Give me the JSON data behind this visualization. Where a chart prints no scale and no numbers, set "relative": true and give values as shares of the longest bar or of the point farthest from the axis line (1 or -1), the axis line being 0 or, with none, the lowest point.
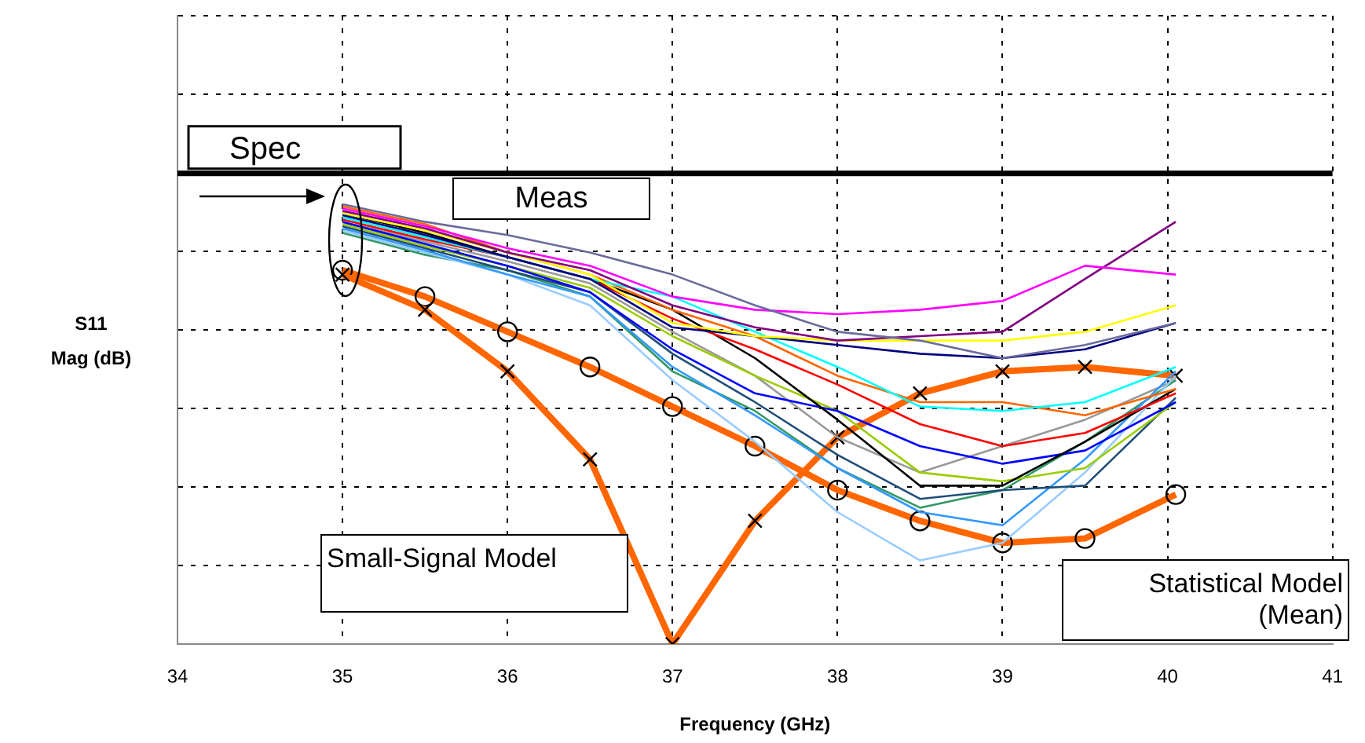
{
  "chart_data": {
    "type": "line",
    "relative": true,
    "xlabel": "Frequency (GHz)",
    "ylabel": "S11\nMag (dB)",
    "xlim": [
      34,
      41
    ],
    "xticks": [
      34,
      35,
      36,
      37,
      38,
      39,
      40,
      41
    ],
    "grid": true,
    "legend": false,
    "x": [
      35,
      35.5,
      36,
      36.5,
      37,
      37.5,
      38,
      38.5,
      39,
      39.5,
      40.05
    ],
    "ref_lines": [
      {
        "axis": "y",
        "value": 1.07,
        "label": "Spec",
        "color": "#000000"
      }
    ],
    "annotations": [
      "Meas"
    ],
    "series": [
      {
        "color": "#6b6b9b",
        "values": [
          1.0,
          0.96,
          0.93,
          0.89,
          0.84,
          0.77,
          0.71,
          0.69,
          0.65,
          0.68,
          0.73
        ]
      },
      {
        "color": "#ff00ff",
        "values": [
          0.99,
          0.95,
          0.9,
          0.86,
          0.79,
          0.76,
          0.75,
          0.76,
          0.78,
          0.86,
          0.84
        ]
      },
      {
        "color": "#800080",
        "values": [
          0.985,
          0.945,
          0.89,
          0.85,
          0.77,
          0.72,
          0.69,
          0.7,
          0.71,
          0.83,
          0.96
        ]
      },
      {
        "color": "#ffff00",
        "values": [
          0.98,
          0.94,
          0.89,
          0.84,
          0.73,
          0.7,
          0.69,
          0.69,
          0.69,
          0.71,
          0.77
        ]
      },
      {
        "color": "#000080",
        "values": [
          0.975,
          0.93,
          0.88,
          0.83,
          0.72,
          0.7,
          0.68,
          0.66,
          0.65,
          0.67,
          0.73
        ]
      },
      {
        "color": "#00ffff",
        "values": [
          0.97,
          0.925,
          0.88,
          0.83,
          0.79,
          0.71,
          0.63,
          0.54,
          0.53,
          0.55,
          0.63
        ]
      },
      {
        "color": "#ff6600",
        "values": [
          0.995,
          0.955,
          0.89,
          0.84,
          0.76,
          0.7,
          0.61,
          0.55,
          0.55,
          0.52,
          0.58
        ]
      },
      {
        "color": "#ff0000",
        "values": [
          0.965,
          0.92,
          0.88,
          0.83,
          0.74,
          0.67,
          0.59,
          0.5,
          0.45,
          0.48,
          0.57
        ]
      },
      {
        "color": "#000000",
        "values": [
          0.98,
          0.935,
          0.88,
          0.83,
          0.76,
          0.65,
          0.51,
          0.36,
          0.36,
          0.46,
          0.58
        ]
      },
      {
        "color": "#0000ff",
        "values": [
          0.96,
          0.91,
          0.86,
          0.8,
          0.67,
          0.57,
          0.53,
          0.45,
          0.41,
          0.44,
          0.55
        ]
      },
      {
        "color": "#99cc00",
        "values": [
          0.955,
          0.905,
          0.86,
          0.81,
          0.7,
          0.61,
          0.53,
          0.39,
          0.37,
          0.4,
          0.55
        ]
      },
      {
        "color": "#1f4e79",
        "values": [
          0.95,
          0.9,
          0.85,
          0.8,
          0.66,
          0.55,
          0.43,
          0.33,
          0.35,
          0.36,
          0.56
        ]
      },
      {
        "color": "#3399ff",
        "values": [
          0.945,
          0.895,
          0.84,
          0.79,
          0.63,
          0.52,
          0.4,
          0.3,
          0.27,
          0.42,
          0.62
        ]
      },
      {
        "color": "#99ccff",
        "values": [
          0.94,
          0.89,
          0.84,
          0.77,
          0.6,
          0.46,
          0.3,
          0.19,
          0.23,
          0.39,
          0.61
        ]
      },
      {
        "color": "#339966",
        "values": [
          0.935,
          0.885,
          0.85,
          0.79,
          0.62,
          0.53,
          0.4,
          0.31,
          0.35,
          0.46,
          0.6
        ]
      },
      {
        "color": "#999999",
        "values": [
          0.96,
          0.915,
          0.87,
          0.82,
          0.71,
          0.61,
          0.47,
          0.39,
          0.45,
          0.51,
          0.6
        ]
      },
      {
        "name": "Small-Signal Model",
        "color": "#ff6600",
        "marker": "cross",
        "values": [
          0.84,
          0.76,
          0.62,
          0.42,
          0.0,
          0.28,
          0.47,
          0.57,
          0.62,
          0.63,
          0.61
        ]
      },
      {
        "name": "Statistical Model (Mean)",
        "color": "#ff6600",
        "marker": "circle",
        "values": [
          0.85,
          0.79,
          0.71,
          0.63,
          0.54,
          0.45,
          0.35,
          0.28,
          0.23,
          0.24,
          0.34
        ]
      }
    ]
  }
}
